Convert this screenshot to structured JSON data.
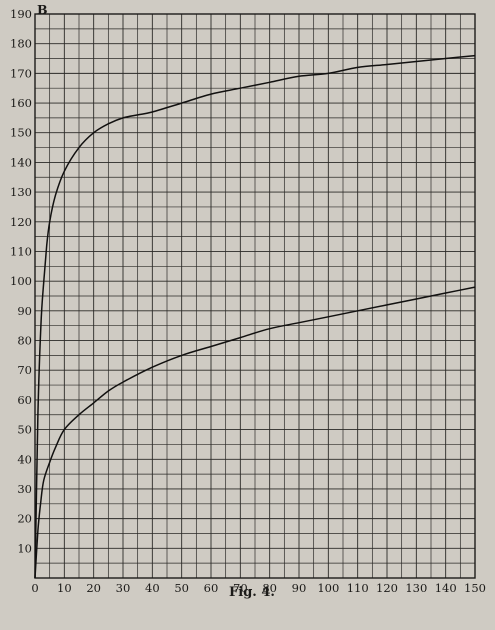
{
  "chart_data": {
    "type": "line",
    "title": "",
    "caption": "Fig. 4.",
    "xlabel": "",
    "ylabel": "B",
    "xlim": [
      0,
      150
    ],
    "ylim": [
      0,
      190
    ],
    "xticks": [
      0,
      10,
      20,
      30,
      40,
      50,
      60,
      70,
      80,
      90,
      100,
      110,
      120,
      130,
      140,
      150
    ],
    "yticks": [
      10,
      20,
      30,
      40,
      50,
      60,
      70,
      80,
      90,
      100,
      110,
      120,
      130,
      140,
      150,
      160,
      170,
      180,
      190
    ],
    "grid": true,
    "series": [
      {
        "x": [
          0,
          1,
          2,
          3,
          4,
          5,
          7,
          10,
          15,
          20,
          25,
          30,
          35,
          40,
          50,
          60,
          70,
          80,
          90,
          100,
          110,
          120,
          130,
          140,
          150
        ],
        "y": [
          0,
          55,
          85,
          100,
          112,
          120,
          129,
          137,
          145,
          150,
          153,
          155,
          156,
          157,
          160,
          163,
          165,
          167,
          169,
          170,
          172,
          173,
          174,
          175,
          176
        ]
      },
      {
        "x": [
          0,
          1,
          2,
          3,
          5,
          7,
          10,
          15,
          20,
          25,
          30,
          40,
          50,
          60,
          70,
          80,
          90,
          100,
          110,
          120,
          130,
          140,
          150
        ],
        "y": [
          0,
          16,
          26,
          33,
          39,
          44,
          50,
          55,
          59,
          63,
          66,
          71,
          75,
          78,
          81,
          84,
          86,
          88,
          90,
          92,
          94,
          96,
          98
        ]
      }
    ]
  }
}
